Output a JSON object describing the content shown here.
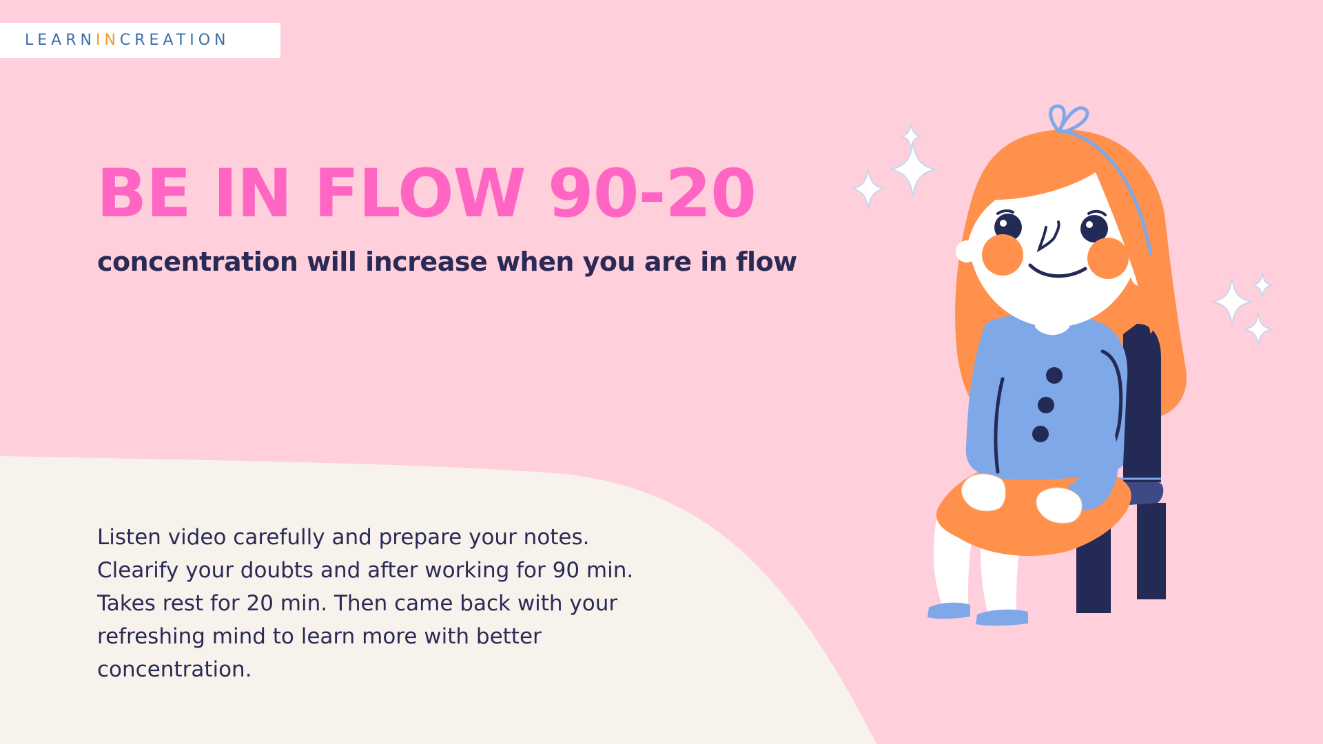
{
  "logo": {
    "part1": "LEARN",
    "part2": "IN",
    "part3": "CREATION"
  },
  "title": "BE IN FLOW 90-20",
  "subtitle": "concentration will increase when you are in flow",
  "body": {
    "lines": [
      "Listen video carefully and prepare your notes.",
      "Clearify your doubts and after working for 90 min.",
      "Takes rest for 20 min. Then came back with your",
      "refreshing mind to learn more with better",
      "concentration."
    ]
  },
  "colors": {
    "background": "#FFCFDB",
    "cream_shape": "#F7F3EC",
    "title": "#FF66C4",
    "text": "#2A2A56",
    "logo_blue": "#3A6FA8",
    "logo_orange": "#F29A2E",
    "hair": "#FF914D",
    "shirt": "#7FA8E8",
    "chair": "#232A55"
  },
  "illustration": {
    "icon": "girl-sitting-on-chair-illustration"
  }
}
